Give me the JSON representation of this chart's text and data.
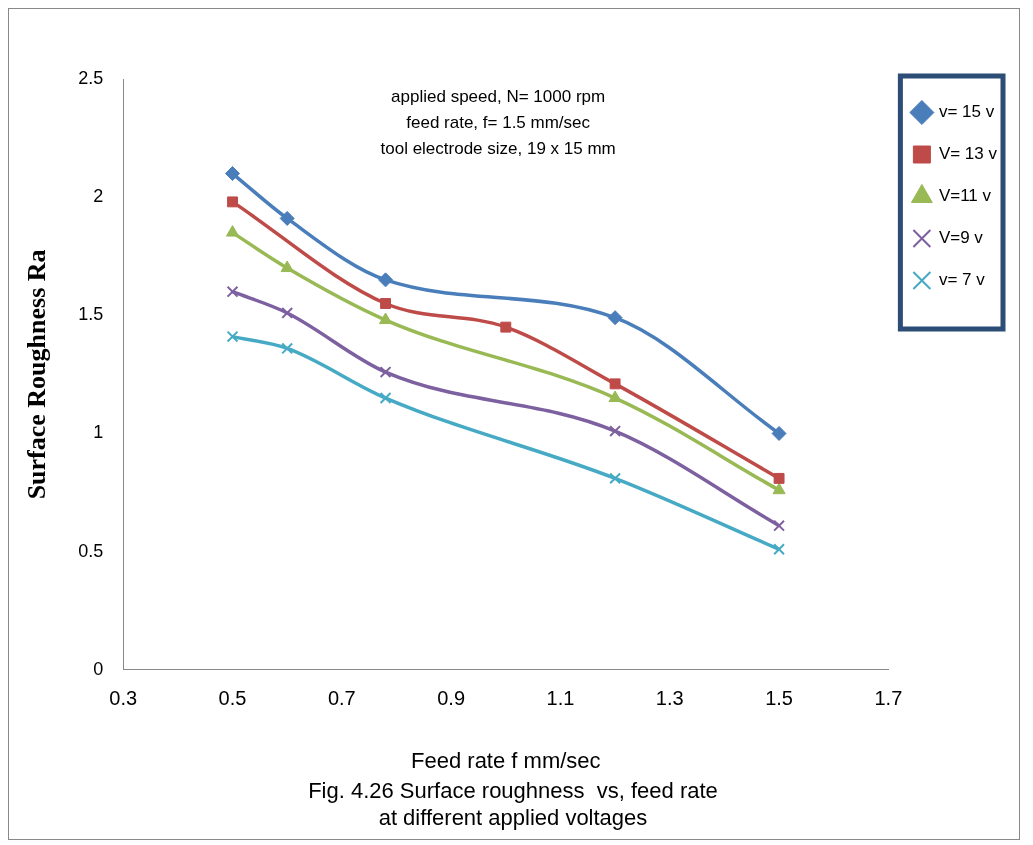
{
  "chart_data": {
    "type": "line",
    "title": "Fig. 4.26 Surface roughness  vs, feed rate\nat different applied voltages",
    "xlabel": "Feed rate f mm/sec",
    "ylabel": "Surface Roughness Ra",
    "annotations": [
      "applied speed, N= 1000 rpm",
      "feed rate, f= 1.5 mm/sec",
      "tool electrode size, 19 x 15 mm"
    ],
    "xlim": [
      0.3,
      1.7
    ],
    "xticks": [
      0.3,
      0.5,
      0.7,
      0.9,
      1.1,
      1.3,
      1.5,
      1.7
    ],
    "ylim": [
      0,
      2.5
    ],
    "yticks": [
      0,
      0.5,
      1,
      1.5,
      2,
      2.5
    ],
    "grid": false,
    "legend": "right",
    "series": [
      {
        "name": "v= 15 v",
        "color": "#4a7ebb",
        "marker": "diamond",
        "x": [
          0.5,
          0.6,
          0.78,
          1.2,
          1.5
        ],
        "values": [
          2.1,
          1.91,
          1.65,
          1.49,
          1.0
        ]
      },
      {
        "name": "V= 13 v",
        "color": "#be4b48",
        "marker": "square",
        "x": [
          0.5,
          0.78,
          1.0,
          1.2,
          1.5
        ],
        "values": [
          1.98,
          1.55,
          1.45,
          1.21,
          0.81
        ]
      },
      {
        "name": "V=11 v",
        "color": "#98b954",
        "marker": "triangle",
        "x": [
          0.5,
          0.6,
          0.78,
          1.2,
          1.5
        ],
        "values": [
          1.85,
          1.7,
          1.48,
          1.15,
          0.76
        ]
      },
      {
        "name": "V=9 v",
        "color": "#7d60a0",
        "marker": "cross",
        "x": [
          0.5,
          0.6,
          0.78,
          1.2,
          1.5
        ],
        "values": [
          1.6,
          1.51,
          1.26,
          1.01,
          0.61
        ]
      },
      {
        "name": "v= 7 v",
        "color": "#46aac5",
        "marker": "cross",
        "x": [
          0.5,
          0.6,
          0.78,
          1.2,
          1.5
        ],
        "values": [
          1.41,
          1.36,
          1.15,
          0.81,
          0.51
        ]
      }
    ]
  }
}
